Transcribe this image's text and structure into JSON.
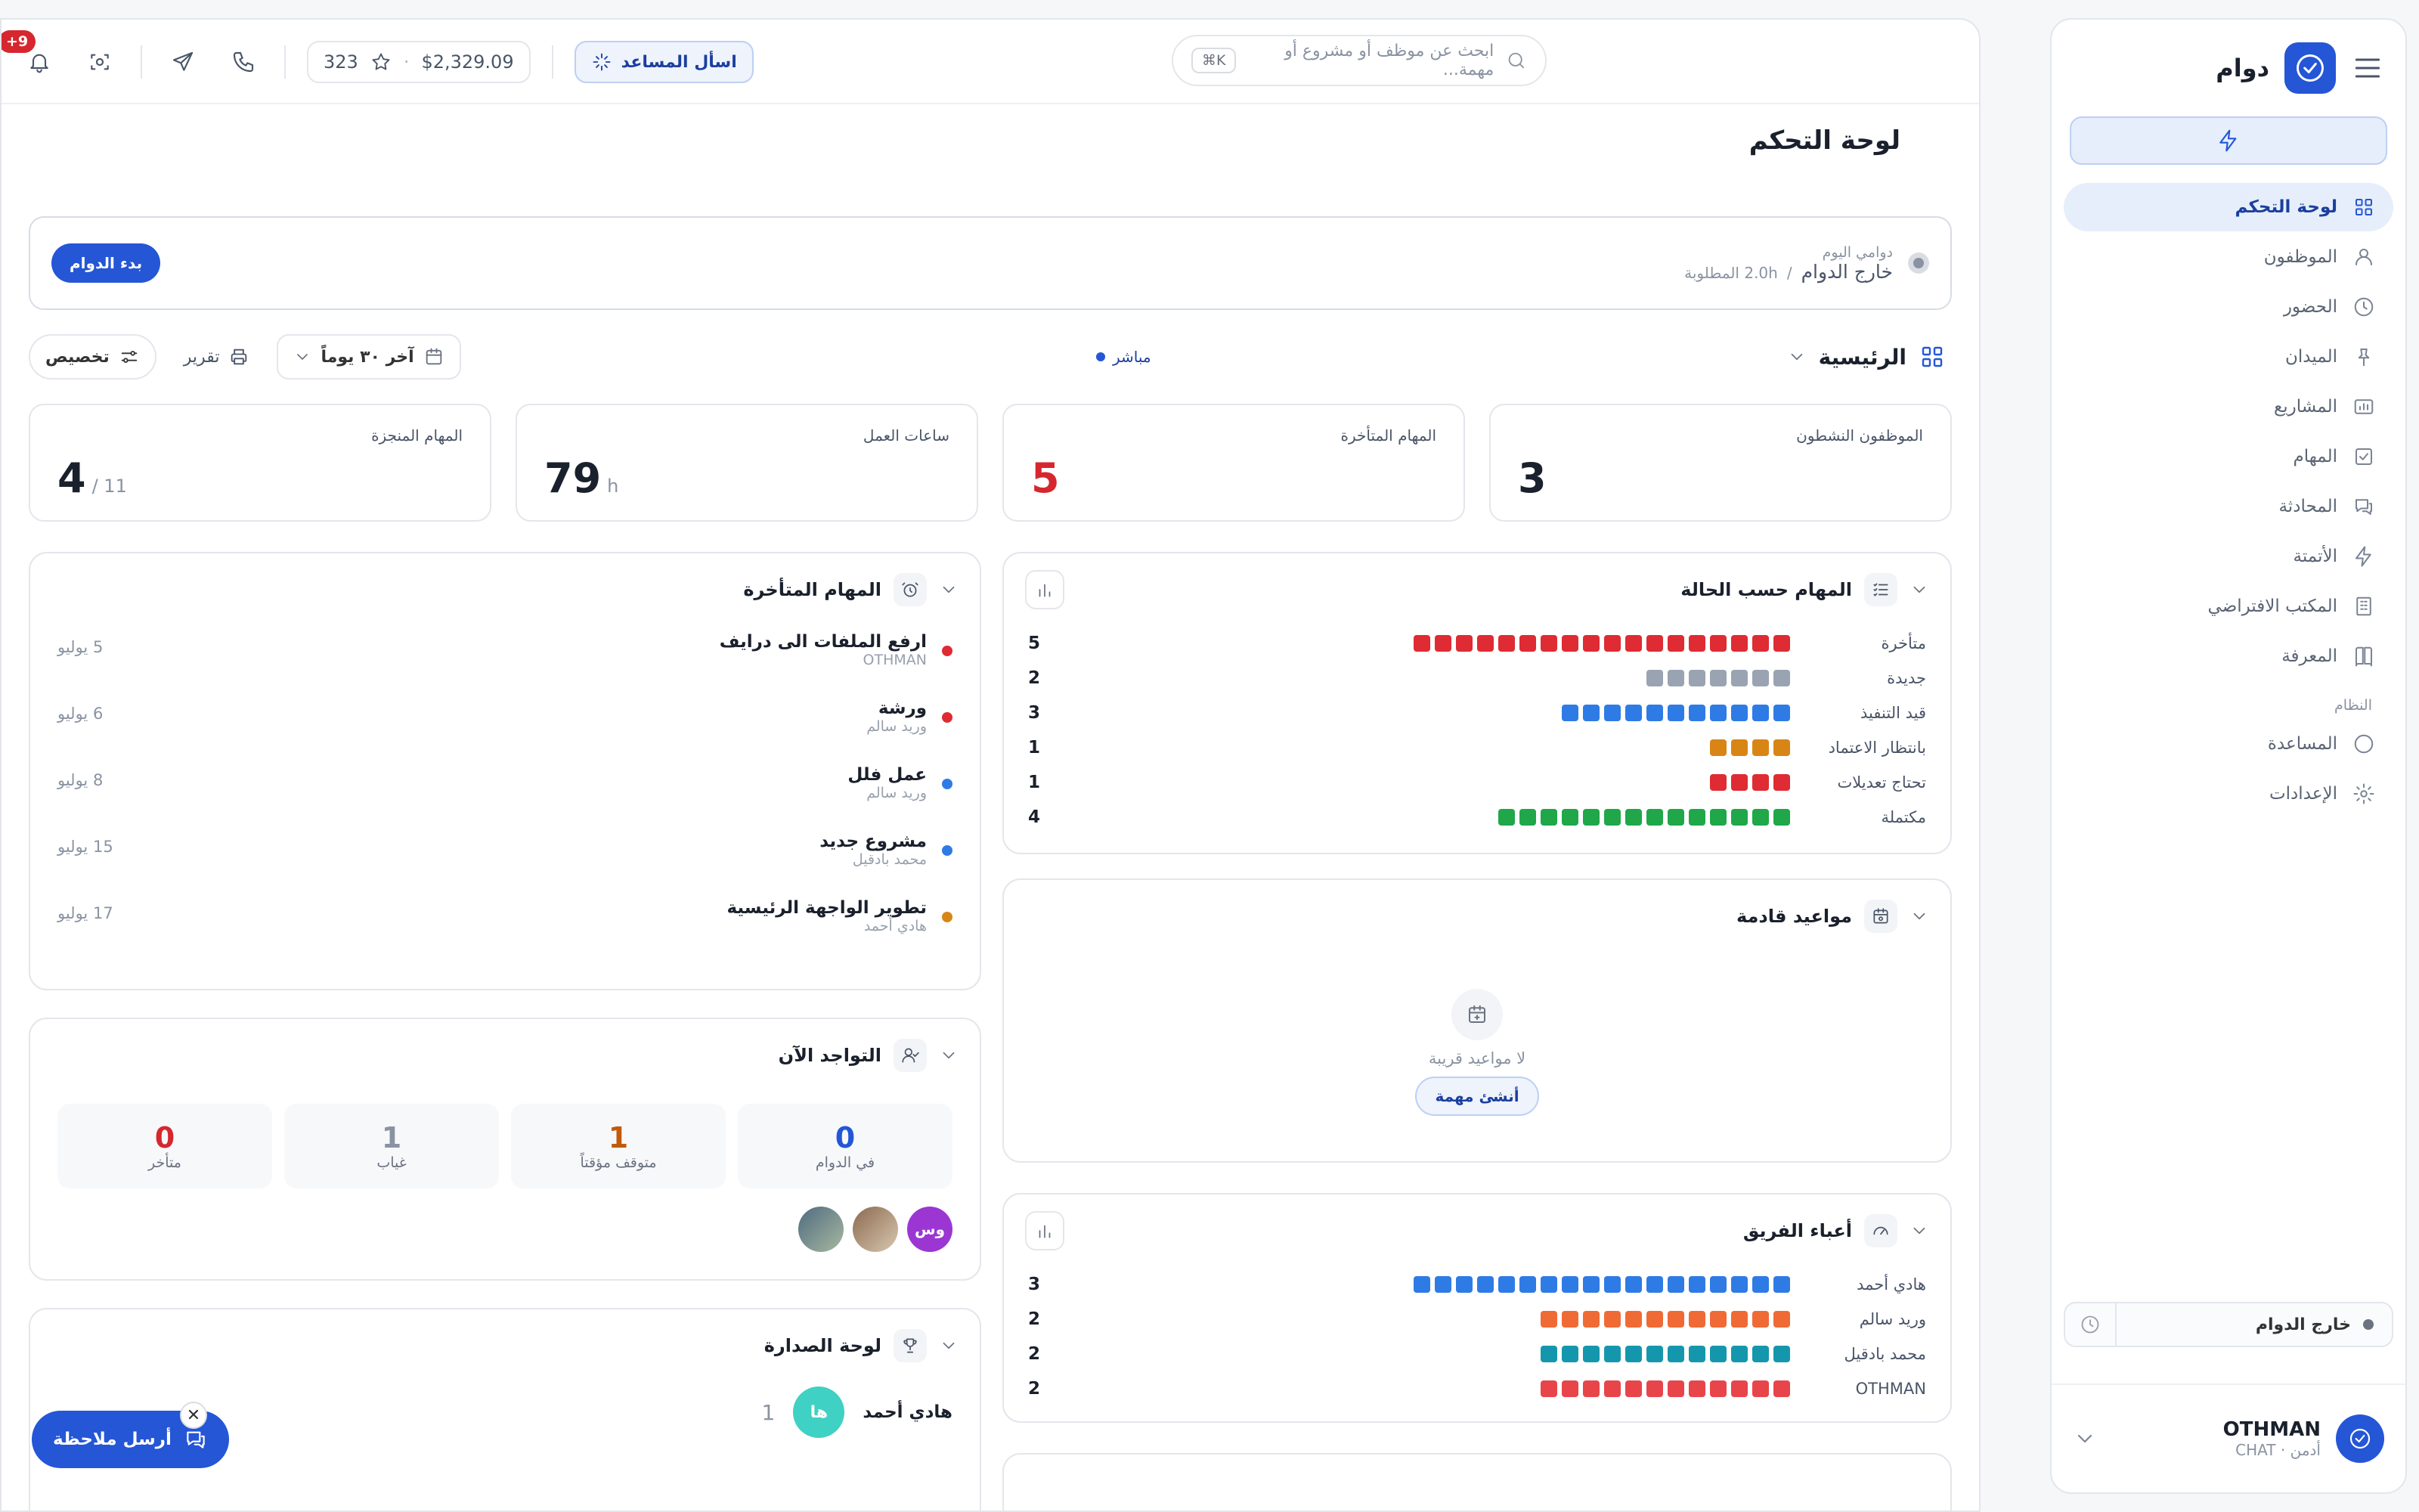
{
  "sidebar": {
    "brand": "دوام",
    "items": [
      {
        "label": "لوحة التحكم",
        "icon": "grid-icon",
        "active": true
      },
      {
        "label": "الموظفون",
        "icon": "user-icon"
      },
      {
        "label": "الحضور",
        "icon": "clock-icon"
      },
      {
        "label": "الميدان",
        "icon": "pin-icon"
      },
      {
        "label": "المشاريع",
        "icon": "chart-board-icon"
      },
      {
        "label": "المهام",
        "icon": "check-square-icon"
      },
      {
        "label": "المحادثة",
        "icon": "chat-icon"
      },
      {
        "label": "الأتمتة",
        "icon": "bolt-icon"
      },
      {
        "label": "المكتب الافتراضي",
        "icon": "building-icon"
      },
      {
        "label": "المعرفة",
        "icon": "book-icon"
      }
    ],
    "section_label": "النظام",
    "system_items": [
      {
        "label": "المساعدة",
        "icon": "help-circle-icon"
      },
      {
        "label": "الإعدادات",
        "icon": "settings-icon"
      }
    ],
    "status": "خارج الدوام",
    "user": {
      "name": "OTHMAN",
      "sub": "أدمن · CHAT"
    }
  },
  "topbar": {
    "search_placeholder": "ابحث عن موظف أو مشروع أو مهمة...",
    "search_shortcut": "⌘K",
    "ask_label": "اسأل المساعد",
    "balance": "$2,329.09",
    "points": "323",
    "notif_badge": "+9"
  },
  "page_title": "لوحة التحكم",
  "shift": {
    "label": "دوامي اليوم",
    "status": "خارج الدوام",
    "required": "2.0h المطلوبة",
    "start_button": "بدء الدوام"
  },
  "controls": {
    "dashboard_name": "الرئيسية",
    "live": "مباشر",
    "date_range": "آخر ٣٠ يوماً",
    "report": "تقرير",
    "customize": "تخصيص"
  },
  "kpis": [
    {
      "title": "الموظفون النشطون",
      "value": "3",
      "suffix": ""
    },
    {
      "title": "المهام المتأخرة",
      "value": "5",
      "suffix": "",
      "red": true
    },
    {
      "title": "ساعات العمل",
      "value": "79",
      "suffix": "h"
    },
    {
      "title": "المهام المنجزة",
      "value": "4",
      "suffix": "/ 11"
    }
  ],
  "tasks_by_status": {
    "title": "المهام حسب الحالة",
    "rows": [
      {
        "label": "متأخرة",
        "value": 5,
        "blocks": 18,
        "color": "#df2b33"
      },
      {
        "label": "جديدة",
        "value": 2,
        "blocks": 7,
        "color": "#9aa3b2"
      },
      {
        "label": "قيد التنفيذ",
        "value": 3,
        "blocks": 11,
        "color": "#2f7be5"
      },
      {
        "label": "بانتظار الاعتماد",
        "value": 1,
        "blocks": 4,
        "color": "#d98516"
      },
      {
        "label": "تحتاج تعديلات",
        "value": 1,
        "blocks": 4,
        "color": "#df2b33"
      },
      {
        "label": "مكتملة",
        "value": 4,
        "blocks": 14,
        "color": "#1fa74a"
      }
    ]
  },
  "overdue": {
    "title": "المهام المتأخرة",
    "items": [
      {
        "name": "ارفع الملفات الى درايف",
        "sub": "OTHMAN",
        "date": "5 يوليو",
        "color": "#df2b33"
      },
      {
        "name": "ورشة",
        "sub": "وريد سالم",
        "date": "6 يوليو",
        "color": "#df2b33"
      },
      {
        "name": "عمل فلل",
        "sub": "وريد سالم",
        "date": "8 يوليو",
        "color": "#2f7be5"
      },
      {
        "name": "مشروع جديد",
        "sub": "محمد بادقيل",
        "date": "15 يوليو",
        "color": "#2f7be5"
      },
      {
        "name": "تطوير الواجهة الرئيسية",
        "sub": "هادي أحمد",
        "date": "17 يوليو",
        "color": "#d98516"
      }
    ]
  },
  "upcoming": {
    "title": "مواعيد قادمة",
    "empty_text": "لا مواعيد قريبة",
    "create_button": "أنشئ مهمة"
  },
  "presence": {
    "title": "التواجد الآن",
    "boxes": [
      {
        "num": "0",
        "label": "في الدوام",
        "color": "#2456d6"
      },
      {
        "num": "1",
        "label": "متوقف مؤقتاً",
        "color": "#c25a0a"
      },
      {
        "num": "1",
        "label": "غياب",
        "color": "#8a93a2"
      },
      {
        "num": "0",
        "label": "متأخر",
        "color": "#d6272f"
      }
    ],
    "avatar_initials": "وس"
  },
  "team_load": {
    "title": "أعباء الفريق",
    "rows": [
      {
        "label": "هادي أحمد",
        "value": 3,
        "blocks": 18,
        "color": "#2f7be5"
      },
      {
        "label": "وريد سالم",
        "value": 2,
        "blocks": 12,
        "color": "#f06a35"
      },
      {
        "label": "محمد بادقيل",
        "value": 2,
        "blocks": 12,
        "color": "#1497ad"
      },
      {
        "label": "OTHMAN",
        "value": 2,
        "blocks": 12,
        "color": "#e8454b"
      }
    ]
  },
  "leaderboard": {
    "title": "لوحة الصدارة",
    "rows": [
      {
        "rank": "1",
        "initials": "ها",
        "name": "هادي أحمد"
      }
    ]
  },
  "feedback_button": "أرسل ملاحظة"
}
